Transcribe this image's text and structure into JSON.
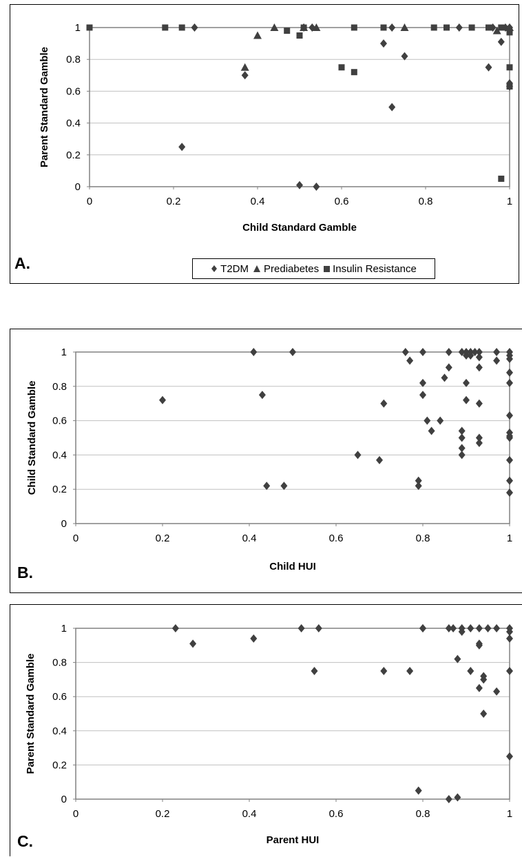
{
  "colors": {
    "marker": "#404040",
    "axis": "#808080",
    "grid": "#c0c0c0"
  },
  "legend": {
    "items": [
      {
        "label": "T2DM",
        "marker": "diamond"
      },
      {
        "label": "Prediabetes",
        "marker": "triangle"
      },
      {
        "label": "Insulin Resistance",
        "marker": "square"
      }
    ]
  },
  "chart_data": [
    {
      "panel_label": "A.",
      "type": "scatter",
      "xlabel": "Child Standard Gamble",
      "ylabel": "Parent Standard Gamble",
      "xlim": [
        0,
        1
      ],
      "ylim": [
        0,
        1
      ],
      "xticks": [
        "0",
        "0.2",
        "0.4",
        "0.6",
        "0.8",
        "1"
      ],
      "yticks": [
        "0",
        "0.2",
        "0.4",
        "0.6",
        "0.8",
        "1"
      ],
      "grid": true,
      "legend_position": "bottom",
      "series": [
        {
          "name": "T2DM",
          "marker": "diamond",
          "points": [
            [
              0.22,
              0.25
            ],
            [
              0.25,
              1.0
            ],
            [
              0.37,
              0.7
            ],
            [
              0.5,
              0.01
            ],
            [
              0.51,
              1.0
            ],
            [
              0.53,
              1.0
            ],
            [
              0.54,
              0.0
            ],
            [
              0.7,
              0.9
            ],
            [
              0.72,
              1.0
            ],
            [
              0.72,
              0.5
            ],
            [
              0.75,
              0.82
            ],
            [
              0.88,
              1.0
            ],
            [
              0.95,
              0.75
            ],
            [
              0.96,
              1.0
            ],
            [
              0.98,
              0.91
            ],
            [
              0.99,
              1.0
            ],
            [
              1.0,
              0.65
            ],
            [
              1.0,
              0.63
            ],
            [
              1.0,
              1.0
            ]
          ]
        },
        {
          "name": "Prediabetes",
          "marker": "triangle",
          "points": [
            [
              0.37,
              0.75
            ],
            [
              0.4,
              0.95
            ],
            [
              0.44,
              1.0
            ],
            [
              0.51,
              1.0
            ],
            [
              0.54,
              1.0
            ],
            [
              0.75,
              1.0
            ],
            [
              0.97,
              0.98
            ],
            [
              1.0,
              1.0
            ]
          ]
        },
        {
          "name": "Insulin Resistance",
          "marker": "square",
          "points": [
            [
              0.0,
              1.0
            ],
            [
              0.18,
              1.0
            ],
            [
              0.22,
              1.0
            ],
            [
              0.47,
              0.98
            ],
            [
              0.5,
              0.95
            ],
            [
              0.51,
              1.0
            ],
            [
              0.6,
              0.75
            ],
            [
              0.63,
              0.72
            ],
            [
              0.63,
              1.0
            ],
            [
              0.7,
              1.0
            ],
            [
              0.82,
              1.0
            ],
            [
              0.85,
              1.0
            ],
            [
              0.91,
              1.0
            ],
            [
              0.95,
              1.0
            ],
            [
              0.98,
              0.05
            ],
            [
              0.98,
              1.0
            ],
            [
              1.0,
              0.75
            ],
            [
              1.0,
              0.97
            ],
            [
              1.0,
              0.63
            ]
          ]
        }
      ]
    },
    {
      "panel_label": "B.",
      "type": "scatter",
      "xlabel": "Child HUI",
      "ylabel": "Child Standard Gamble",
      "xlim": [
        0,
        1
      ],
      "ylim": [
        0,
        1
      ],
      "xticks": [
        "0",
        "0.2",
        "0.4",
        "0.6",
        "0.8",
        "1"
      ],
      "yticks": [
        "0",
        "0.2",
        "0.4",
        "0.6",
        "0.8",
        "1"
      ],
      "grid": true,
      "series": [
        {
          "marker": "diamond",
          "points": [
            [
              0.2,
              0.72
            ],
            [
              0.41,
              1.0
            ],
            [
              0.43,
              0.75
            ],
            [
              0.44,
              0.22
            ],
            [
              0.48,
              0.22
            ],
            [
              0.5,
              1.0
            ],
            [
              0.65,
              0.4
            ],
            [
              0.7,
              0.37
            ],
            [
              0.71,
              0.7
            ],
            [
              0.76,
              1.0
            ],
            [
              0.77,
              0.95
            ],
            [
              0.79,
              0.25
            ],
            [
              0.79,
              0.22
            ],
            [
              0.8,
              0.82
            ],
            [
              0.8,
              0.75
            ],
            [
              0.8,
              1.0
            ],
            [
              0.81,
              0.6
            ],
            [
              0.82,
              0.54
            ],
            [
              0.84,
              0.6
            ],
            [
              0.85,
              0.85
            ],
            [
              0.86,
              0.91
            ],
            [
              0.86,
              1.0
            ],
            [
              0.89,
              1.0
            ],
            [
              0.89,
              0.54
            ],
            [
              0.89,
              0.5
            ],
            [
              0.89,
              0.44
            ],
            [
              0.89,
              0.4
            ],
            [
              0.9,
              0.98
            ],
            [
              0.9,
              1.0
            ],
            [
              0.9,
              0.82
            ],
            [
              0.9,
              0.72
            ],
            [
              0.91,
              0.98
            ],
            [
              0.91,
              1.0
            ],
            [
              0.92,
              1.0
            ],
            [
              0.93,
              0.97
            ],
            [
              0.93,
              1.0
            ],
            [
              0.93,
              0.91
            ],
            [
              0.93,
              0.7
            ],
            [
              0.93,
              0.5
            ],
            [
              0.93,
              0.47
            ],
            [
              0.97,
              0.95
            ],
            [
              0.97,
              1.0
            ],
            [
              1.0,
              1.0
            ],
            [
              1.0,
              0.98
            ],
            [
              1.0,
              0.96
            ],
            [
              1.0,
              0.88
            ],
            [
              1.0,
              0.82
            ],
            [
              1.0,
              0.63
            ],
            [
              1.0,
              0.53
            ],
            [
              1.0,
              0.51
            ],
            [
              1.0,
              0.5
            ],
            [
              1.0,
              0.37
            ],
            [
              1.0,
              0.25
            ],
            [
              1.0,
              0.18
            ]
          ]
        }
      ]
    },
    {
      "panel_label": "C.",
      "type": "scatter",
      "xlabel": "Parent HUI",
      "ylabel": "Parent Standard Gamble",
      "xlim": [
        0,
        1
      ],
      "ylim": [
        0,
        1
      ],
      "xticks": [
        "0",
        "0.2",
        "0.4",
        "0.6",
        "0.8",
        "1"
      ],
      "yticks": [
        "0",
        "0.2",
        "0.4",
        "0.6",
        "0.8",
        "1"
      ],
      "grid": true,
      "series": [
        {
          "marker": "diamond",
          "points": [
            [
              0.23,
              1.0
            ],
            [
              0.27,
              0.91
            ],
            [
              0.41,
              0.94
            ],
            [
              0.52,
              1.0
            ],
            [
              0.55,
              0.75
            ],
            [
              0.56,
              1.0
            ],
            [
              0.71,
              0.75
            ],
            [
              0.77,
              0.75
            ],
            [
              0.79,
              0.05
            ],
            [
              0.8,
              1.0
            ],
            [
              0.8,
              1.0
            ],
            [
              0.86,
              1.0
            ],
            [
              0.86,
              0.0
            ],
            [
              0.87,
              1.0
            ],
            [
              0.88,
              0.82
            ],
            [
              0.88,
              0.01
            ],
            [
              0.89,
              1.0
            ],
            [
              0.89,
              0.98
            ],
            [
              0.91,
              0.75
            ],
            [
              0.91,
              1.0
            ],
            [
              0.93,
              0.91
            ],
            [
              0.93,
              0.9
            ],
            [
              0.93,
              0.65
            ],
            [
              0.93,
              1.0
            ],
            [
              0.94,
              0.72
            ],
            [
              0.94,
              0.7
            ],
            [
              0.94,
              0.5
            ],
            [
              0.95,
              1.0
            ],
            [
              0.97,
              0.63
            ],
            [
              0.97,
              1.0
            ],
            [
              1.0,
              1.0
            ],
            [
              1.0,
              0.98
            ],
            [
              1.0,
              0.94
            ],
            [
              1.0,
              0.75
            ],
            [
              1.0,
              0.25
            ]
          ]
        }
      ]
    }
  ]
}
